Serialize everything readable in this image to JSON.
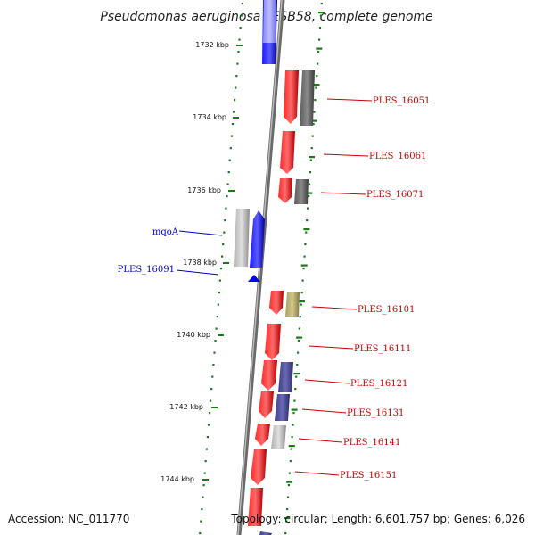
{
  "title": "Pseudomonas aeruginosa LESB58, complete genome",
  "footer": {
    "accession": "Accession: NC_011770",
    "topology": "Topology: circular; Length: 6,601,757 bp; Genes: 6,026"
  },
  "colors": {
    "forward_gene": "#ff0000",
    "reverse_gene": "#0000ff",
    "label_forward": "#cc0000",
    "label_reverse": "#0000cc",
    "backbone": "#808080",
    "ticks": "#1a7a1a"
  },
  "kbp_labels": [
    "1732 kbp",
    "1734 kbp",
    "1736 kbp",
    "1738 kbp",
    "1740 kbp",
    "1742 kbp",
    "1744 kbp"
  ],
  "gene_labels": [
    {
      "name": "PLES_16051",
      "strand": "forward"
    },
    {
      "name": "PLES_16061",
      "strand": "forward"
    },
    {
      "name": "PLES_16071",
      "strand": "forward"
    },
    {
      "name": "mqoA",
      "strand": "reverse"
    },
    {
      "name": "PLES_16091",
      "strand": "reverse"
    },
    {
      "name": "PLES_16101",
      "strand": "forward"
    },
    {
      "name": "PLES_16111",
      "strand": "forward"
    },
    {
      "name": "PLES_16121",
      "strand": "forward"
    },
    {
      "name": "PLES_16131",
      "strand": "forward"
    },
    {
      "name": "PLES_16141",
      "strand": "forward"
    },
    {
      "name": "PLES_16151",
      "strand": "forward"
    }
  ]
}
